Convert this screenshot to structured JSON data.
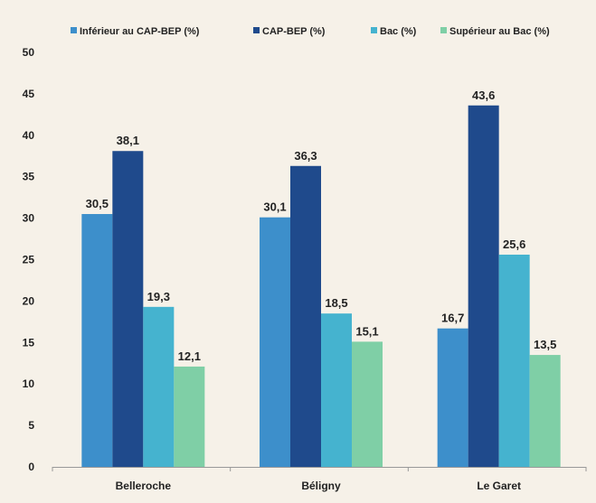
{
  "chart_data": {
    "type": "bar",
    "categories": [
      "Belleroche",
      "Béligny",
      "Le Garet"
    ],
    "series": [
      {
        "name": "Inférieur au CAP-BEP (%)",
        "values": [
          30.5,
          30.1,
          16.7
        ],
        "labels": [
          "30,5",
          "30,1",
          "16,7"
        ],
        "color": "#3d8fcb"
      },
      {
        "name": "CAP-BEP (%)",
        "values": [
          38.1,
          36.3,
          43.6
        ],
        "labels": [
          "38,1",
          "36,3",
          "43,6"
        ],
        "color": "#1f4a8c"
      },
      {
        "name": "Bac (%)",
        "values": [
          19.3,
          18.5,
          25.6
        ],
        "labels": [
          "19,3",
          "18,5",
          "25,6"
        ],
        "color": "#45b3cf"
      },
      {
        "name": "Supérieur au Bac (%)",
        "values": [
          12.1,
          15.1,
          13.5
        ],
        "labels": [
          "12,1",
          "15,1",
          "13,5"
        ],
        "color": "#7fcfa6"
      }
    ],
    "ylim": [
      0,
      50
    ],
    "yticks": [
      "0",
      "5",
      "10",
      "15",
      "20",
      "25",
      "30",
      "35",
      "40",
      "45",
      "50"
    ],
    "legend_position": "top",
    "grid": false,
    "title": "",
    "xlabel": "",
    "ylabel": ""
  }
}
